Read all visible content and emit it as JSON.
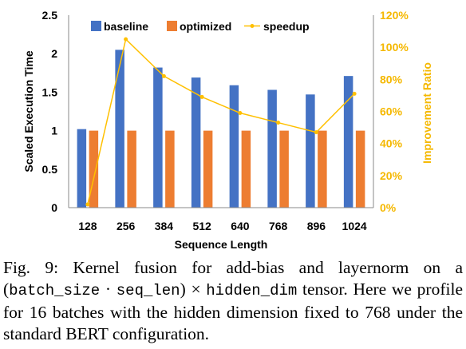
{
  "chart_data": {
    "type": "bar",
    "categories": [
      "128",
      "256",
      "384",
      "512",
      "640",
      "768",
      "896",
      "1024"
    ],
    "series": [
      {
        "name": "baseline",
        "type": "bar",
        "axis": "left",
        "color": "#4472c4",
        "values": [
          1.02,
          2.05,
          1.82,
          1.69,
          1.59,
          1.53,
          1.47,
          1.71
        ]
      },
      {
        "name": "optimized",
        "type": "bar",
        "axis": "left",
        "color": "#ed7d31",
        "values": [
          1.0,
          1.0,
          1.0,
          1.0,
          1.0,
          1.0,
          1.0,
          1.0
        ]
      },
      {
        "name": "speedup",
        "type": "line",
        "axis": "right",
        "color": "#ffc000",
        "values": [
          0.02,
          1.05,
          0.82,
          0.69,
          0.59,
          0.53,
          0.47,
          0.71
        ]
      }
    ],
    "xlabel": "Sequence Length",
    "ylabel": "Scaled Execution Time",
    "y2label": "Improvement Ratio",
    "ylim": [
      0,
      2.5
    ],
    "y2lim": [
      0,
      1.2
    ],
    "yticks": [
      "0",
      "0.5",
      "1",
      "1.5",
      "2",
      "2.5"
    ],
    "y2ticks": [
      "0%",
      "20%",
      "40%",
      "60%",
      "80%",
      "100%",
      "120%"
    ],
    "grid": false,
    "legend_position": "top"
  },
  "caption": {
    "part1": "Fig. 9: Kernel fusion for add-bias and layernorm on a (",
    "mono1": "batch_size",
    "part2": " · ",
    "mono2": "seq_len",
    "part3": ") × ",
    "mono3": "hidden_dim",
    "part4": " tensor. Here we profile for 16 batches with the hidden dimension fixed to 768 under the standard BERT configuration."
  }
}
